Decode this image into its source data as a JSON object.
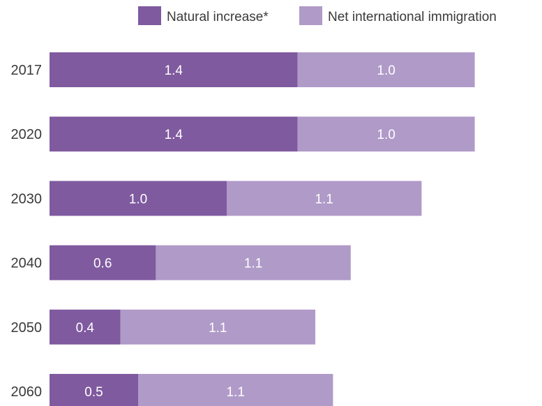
{
  "chart_data": {
    "type": "bar",
    "orientation": "horizontal",
    "stacked": true,
    "categories": [
      "2017",
      "2020",
      "2030",
      "2040",
      "2050",
      "2060"
    ],
    "series": [
      {
        "name": "Natural increase*",
        "color": "#7f5a9f",
        "values": [
          1.4,
          1.4,
          1.0,
          0.6,
          0.4,
          0.5
        ]
      },
      {
        "name": "Net international immigration",
        "color": "#b09ac8",
        "values": [
          1.0,
          1.0,
          1.1,
          1.1,
          1.1,
          1.1
        ]
      }
    ],
    "data_labels": [
      [
        "1.4",
        "1.4",
        "1.0",
        "0.6",
        "0.4",
        "0.5"
      ],
      [
        "1.0",
        "1.0",
        "1.1",
        "1.1",
        "1.1",
        "1.1"
      ]
    ],
    "xlim": [
      0,
      2.8
    ],
    "grid": false,
    "legend_position": "top-right"
  }
}
